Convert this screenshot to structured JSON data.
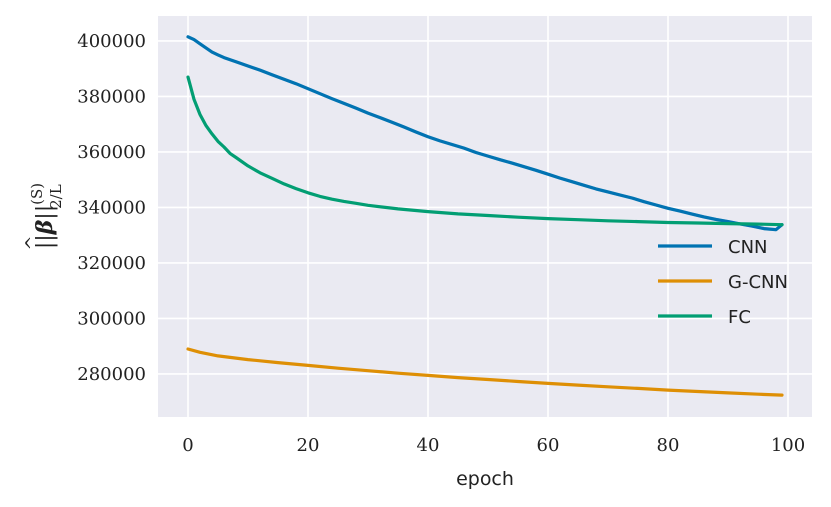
{
  "chart_data": {
    "type": "line",
    "xlabel": "epoch",
    "ylabel": {
      "norm_open": "||",
      "symbol": "β",
      "hat": "^",
      "norm_close": "||",
      "superscript": "(S)",
      "subscript": "2/L"
    },
    "xlim": [
      -5,
      104
    ],
    "ylim": [
      264500,
      409000
    ],
    "xticks": [
      0,
      20,
      40,
      60,
      80,
      100
    ],
    "yticks": [
      280000,
      300000,
      320000,
      340000,
      360000,
      380000,
      400000
    ],
    "xtick_labels": [
      "0",
      "20",
      "40",
      "60",
      "80",
      "100"
    ],
    "ytick_labels": [
      "280000",
      "300000",
      "320000",
      "340000",
      "360000",
      "380000",
      "400000"
    ],
    "grid": true,
    "legend_position": "center-right",
    "background": "#eaeaf2",
    "series": [
      {
        "name": "CNN",
        "color": "#0173b2",
        "x": [
          0,
          1,
          2,
          3,
          4,
          5,
          6,
          8,
          10,
          12,
          14,
          16,
          18,
          20,
          22,
          24,
          26,
          28,
          30,
          32,
          34,
          36,
          38,
          40,
          42,
          44,
          46,
          48,
          50,
          52,
          54,
          56,
          58,
          60,
          62,
          64,
          66,
          68,
          70,
          72,
          74,
          76,
          78,
          80,
          82,
          84,
          86,
          88,
          90,
          92,
          94,
          96,
          98,
          99
        ],
        "y": [
          401500,
          400500,
          399000,
          397500,
          396000,
          395000,
          394000,
          392500,
          391000,
          389500,
          387800,
          386200,
          384600,
          382800,
          381000,
          379200,
          377500,
          375800,
          374000,
          372400,
          370700,
          369000,
          367200,
          365500,
          364000,
          362700,
          361400,
          359800,
          358500,
          357200,
          356000,
          354700,
          353400,
          352000,
          350600,
          349300,
          348000,
          346700,
          345600,
          344500,
          343400,
          342100,
          340900,
          339700,
          338700,
          337600,
          336600,
          335700,
          334900,
          334100,
          333300,
          332400,
          332000,
          333800
        ],
        "band": 600
      },
      {
        "name": "G-CNN",
        "color": "#de8f05",
        "x": [
          0,
          2,
          5,
          10,
          15,
          20,
          25,
          30,
          35,
          40,
          45,
          50,
          55,
          60,
          65,
          70,
          75,
          80,
          85,
          90,
          95,
          99
        ],
        "y": [
          289000,
          287800,
          286500,
          285200,
          284100,
          283100,
          282100,
          281200,
          280300,
          279500,
          278700,
          278000,
          277300,
          276600,
          276000,
          275400,
          274800,
          274200,
          273700,
          273200,
          272700,
          272400
        ],
        "band": 400
      },
      {
        "name": "FC",
        "color": "#029e73",
        "x": [
          0,
          1,
          2,
          3,
          4,
          5,
          6,
          7,
          8,
          10,
          12,
          14,
          16,
          18,
          20,
          22,
          24,
          26,
          28,
          30,
          35,
          40,
          45,
          50,
          55,
          60,
          65,
          70,
          75,
          80,
          85,
          90,
          95,
          99
        ],
        "y": [
          387000,
          379000,
          373500,
          369500,
          366500,
          363800,
          361800,
          359500,
          358000,
          355000,
          352500,
          350500,
          348500,
          346800,
          345300,
          344000,
          343000,
          342200,
          341500,
          340800,
          339500,
          338500,
          337700,
          337100,
          336500,
          336000,
          335600,
          335200,
          334900,
          334600,
          334400,
          334200,
          334000,
          333800
        ],
        "band": 300
      }
    ]
  }
}
